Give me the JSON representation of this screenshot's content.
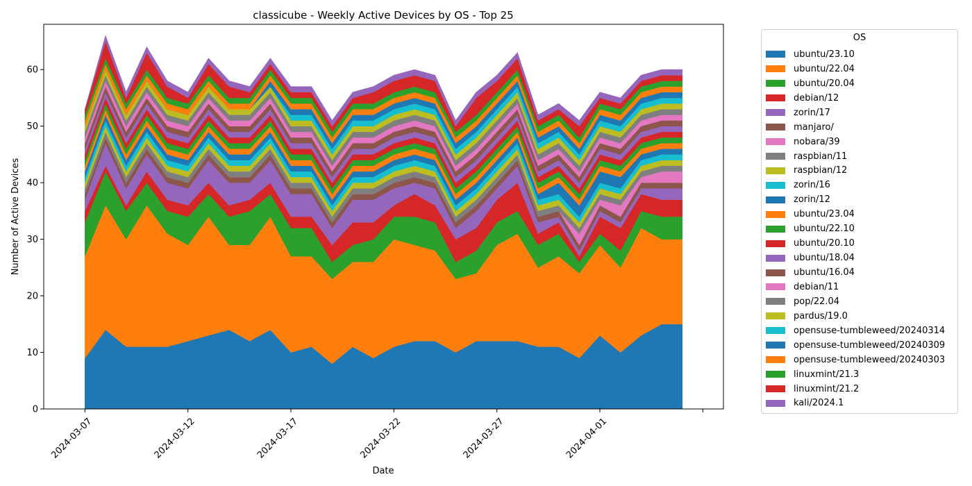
{
  "chart_data": {
    "type": "area",
    "stacked": true,
    "title": "classicube - Weekly Active Devices by OS - Top 25",
    "xlabel": "Date",
    "ylabel": "Number of Active Devices",
    "ylim": [
      0,
      68
    ],
    "xlim": [
      "2024-03-05",
      "2024-04-07"
    ],
    "yticks": [
      0,
      10,
      20,
      30,
      40,
      50,
      60
    ],
    "xticks": [
      "2024-03-07",
      "2024-03-12",
      "2024-03-17",
      "2024-03-22",
      "2024-03-27",
      "2024-04-01"
    ],
    "legend_title": "OS",
    "legend_position": "outside-right",
    "grid": false,
    "x": [
      "2024-03-07",
      "2024-03-08",
      "2024-03-09",
      "2024-03-10",
      "2024-03-11",
      "2024-03-12",
      "2024-03-13",
      "2024-03-14",
      "2024-03-15",
      "2024-03-16",
      "2024-03-17",
      "2024-03-18",
      "2024-03-19",
      "2024-03-20",
      "2024-03-21",
      "2024-03-22",
      "2024-03-23",
      "2024-03-24",
      "2024-03-25",
      "2024-03-26",
      "2024-03-27",
      "2024-03-28",
      "2024-03-29",
      "2024-03-30",
      "2024-03-31",
      "2024-04-01",
      "2024-04-02",
      "2024-04-03",
      "2024-04-04",
      "2024-04-05"
    ],
    "series": [
      {
        "name": "ubuntu/23.10",
        "color": "#1f77b4",
        "values": [
          9,
          14,
          11,
          11,
          11,
          12,
          13,
          14,
          12,
          14,
          10,
          11,
          8,
          11,
          9,
          11,
          12,
          12,
          10,
          12,
          12,
          12,
          11,
          11,
          9,
          13,
          10,
          13,
          15,
          15
        ]
      },
      {
        "name": "ubuntu/22.04",
        "color": "#ff7f0e",
        "values": [
          18,
          22,
          19,
          25,
          20,
          17,
          21,
          15,
          17,
          20,
          17,
          16,
          15,
          15,
          17,
          19,
          17,
          16,
          13,
          12,
          17,
          19,
          14,
          16,
          15,
          16,
          15,
          19,
          15,
          15
        ]
      },
      {
        "name": "ubuntu/20.04",
        "color": "#2ca02c",
        "values": [
          6,
          6,
          5,
          4,
          4,
          5,
          4,
          5,
          6,
          4,
          5,
          5,
          3,
          3,
          4,
          4,
          5,
          5,
          3,
          4,
          4,
          4,
          4,
          4,
          2,
          2,
          3,
          3,
          4,
          4
        ]
      },
      {
        "name": "debian/12",
        "color": "#d62728",
        "values": [
          2,
          1,
          1,
          2,
          2,
          2,
          2,
          2,
          2,
          2,
          2,
          2,
          3,
          4,
          3,
          2,
          4,
          3,
          4,
          4,
          4,
          5,
          2,
          2,
          1,
          3,
          4,
          3,
          3,
          3
        ]
      },
      {
        "name": "zorin/17",
        "color": "#9467bd",
        "values": [
          2,
          4,
          3,
          3,
          3,
          3,
          4,
          4,
          3,
          4,
          4,
          4,
          3,
          4,
          4,
          3,
          2,
          3,
          2,
          3,
          2,
          3,
          2,
          1,
          1,
          1,
          1,
          1,
          2,
          2
        ]
      },
      {
        "name": "manjaro/",
        "color": "#8c564b",
        "values": [
          1,
          1,
          1,
          1,
          1,
          1,
          1,
          1,
          1,
          1,
          1,
          1,
          1,
          1,
          1,
          1,
          1,
          1,
          1,
          1,
          1,
          1,
          1,
          1,
          1,
          1,
          1,
          1,
          1,
          1
        ]
      },
      {
        "name": "nobara/39",
        "color": "#e377c2",
        "values": [
          0,
          0,
          0,
          0,
          0,
          0,
          0,
          0,
          0,
          0,
          0,
          0,
          0,
          0,
          0,
          0,
          0,
          0,
          0,
          0,
          0,
          0,
          0,
          0,
          2,
          1,
          2,
          1,
          2,
          2
        ]
      },
      {
        "name": "raspbian/11",
        "color": "#7f7f7f",
        "values": [
          1,
          1,
          1,
          1,
          1,
          1,
          1,
          1,
          1,
          1,
          1,
          1,
          1,
          1,
          1,
          1,
          1,
          1,
          1,
          1,
          1,
          1,
          1,
          1,
          1,
          1,
          1,
          1,
          1,
          1
        ]
      },
      {
        "name": "raspbian/12",
        "color": "#bcbd22",
        "values": [
          1,
          1,
          1,
          1,
          1,
          1,
          1,
          1,
          1,
          1,
          1,
          1,
          1,
          1,
          1,
          1,
          1,
          1,
          1,
          1,
          1,
          1,
          1,
          1,
          1,
          1,
          1,
          1,
          1,
          1
        ]
      },
      {
        "name": "zorin/16",
        "color": "#17becf",
        "values": [
          1,
          1,
          1,
          1,
          1,
          1,
          1,
          1,
          1,
          1,
          1,
          1,
          1,
          1,
          1,
          1,
          1,
          1,
          1,
          1,
          1,
          1,
          1,
          1,
          1,
          1,
          1,
          1,
          1,
          1
        ]
      },
      {
        "name": "zorin/12",
        "color": "#1f77b4",
        "values": [
          1,
          1,
          1,
          1,
          1,
          1,
          1,
          1,
          1,
          1,
          1,
          1,
          1,
          1,
          1,
          1,
          1,
          1,
          1,
          1,
          1,
          1,
          1,
          2,
          2,
          2,
          2,
          1,
          1,
          1
        ]
      },
      {
        "name": "ubuntu/23.04",
        "color": "#ff7f0e",
        "values": [
          1,
          1,
          1,
          1,
          1,
          1,
          1,
          1,
          1,
          1,
          1,
          1,
          1,
          1,
          1,
          1,
          1,
          1,
          1,
          1,
          1,
          1,
          1,
          1,
          1,
          1,
          1,
          1,
          1,
          1
        ]
      },
      {
        "name": "ubuntu/22.10",
        "color": "#2ca02c",
        "values": [
          1,
          1,
          1,
          1,
          1,
          1,
          1,
          1,
          1,
          1,
          1,
          1,
          1,
          1,
          1,
          1,
          1,
          1,
          1,
          1,
          1,
          1,
          1,
          1,
          1,
          1,
          1,
          1,
          1,
          1
        ]
      },
      {
        "name": "ubuntu/20.10",
        "color": "#d62728",
        "values": [
          1,
          1,
          1,
          1,
          1,
          1,
          1,
          1,
          1,
          1,
          1,
          1,
          1,
          1,
          1,
          1,
          1,
          1,
          1,
          1,
          1,
          1,
          1,
          1,
          1,
          1,
          1,
          1,
          1,
          1
        ]
      },
      {
        "name": "ubuntu/18.04",
        "color": "#9467bd",
        "values": [
          1,
          1,
          1,
          1,
          1,
          1,
          1,
          1,
          1,
          1,
          1,
          1,
          1,
          1,
          1,
          1,
          1,
          1,
          1,
          1,
          1,
          1,
          1,
          1,
          1,
          1,
          1,
          1,
          1,
          1
        ]
      },
      {
        "name": "ubuntu/16.04",
        "color": "#8c564b",
        "values": [
          1,
          1,
          1,
          1,
          1,
          1,
          1,
          1,
          1,
          1,
          1,
          1,
          1,
          1,
          1,
          1,
          1,
          1,
          1,
          1,
          1,
          1,
          1,
          1,
          1,
          1,
          1,
          1,
          1,
          1
        ]
      },
      {
        "name": "debian/11",
        "color": "#e377c2",
        "values": [
          1,
          1,
          1,
          1,
          1,
          1,
          1,
          1,
          1,
          1,
          1,
          1,
          1,
          1,
          1,
          1,
          1,
          1,
          1,
          1,
          1,
          1,
          1,
          1,
          1,
          1,
          1,
          1,
          1,
          1
        ]
      },
      {
        "name": "pop/22.04",
        "color": "#7f7f7f",
        "values": [
          1,
          1,
          1,
          1,
          1,
          1,
          1,
          1,
          1,
          1,
          1,
          1,
          1,
          1,
          1,
          1,
          1,
          1,
          1,
          1,
          1,
          1,
          1,
          1,
          1,
          1,
          1,
          1,
          1,
          1
        ]
      },
      {
        "name": "pardus/19.0",
        "color": "#bcbd22",
        "values": [
          1,
          1,
          1,
          1,
          1,
          1,
          1,
          1,
          1,
          1,
          1,
          1,
          1,
          1,
          1,
          1,
          1,
          1,
          1,
          1,
          1,
          1,
          1,
          1,
          1,
          1,
          1,
          1,
          1,
          1
        ]
      },
      {
        "name": "opensuse-tumbleweed/20240314",
        "color": "#17becf",
        "values": [
          0,
          0,
          0,
          0,
          0,
          0,
          0,
          0,
          0,
          0,
          1,
          1,
          1,
          1,
          1,
          1,
          1,
          1,
          1,
          1,
          1,
          1,
          1,
          1,
          1,
          1,
          1,
          1,
          1,
          1
        ]
      },
      {
        "name": "opensuse-tumbleweed/20240309",
        "color": "#1f77b4",
        "values": [
          0,
          0,
          0,
          0,
          0,
          0,
          0,
          0,
          0,
          1,
          1,
          1,
          1,
          1,
          1,
          1,
          1,
          1,
          1,
          1,
          1,
          1,
          1,
          1,
          1,
          1,
          1,
          1,
          1,
          1
        ]
      },
      {
        "name": "opensuse-tumbleweed/20240303",
        "color": "#ff7f0e",
        "values": [
          1,
          1,
          1,
          1,
          1,
          1,
          1,
          1,
          1,
          1,
          1,
          1,
          1,
          1,
          1,
          1,
          1,
          1,
          1,
          1,
          1,
          1,
          1,
          1,
          1,
          1,
          1,
          1,
          1,
          1
        ]
      },
      {
        "name": "linuxmint/21.3",
        "color": "#2ca02c",
        "values": [
          1,
          1,
          1,
          1,
          1,
          1,
          1,
          1,
          1,
          1,
          1,
          1,
          1,
          1,
          1,
          1,
          1,
          1,
          1,
          1,
          1,
          1,
          1,
          1,
          1,
          1,
          1,
          1,
          1,
          1
        ]
      },
      {
        "name": "linuxmint/21.2",
        "color": "#d62728",
        "values": [
          1,
          3,
          1,
          3,
          2,
          1,
          2,
          2,
          1,
          1,
          1,
          1,
          1,
          1,
          2,
          2,
          2,
          2,
          1,
          3,
          2,
          2,
          1,
          1,
          2,
          1,
          1,
          1,
          1,
          1
        ]
      },
      {
        "name": "kali/2024.1",
        "color": "#9467bd",
        "values": [
          0,
          1,
          1,
          1,
          1,
          1,
          1,
          1,
          1,
          1,
          1,
          1,
          1,
          1,
          1,
          1,
          1,
          1,
          1,
          1,
          1,
          1,
          1,
          1,
          1,
          1,
          1,
          1,
          1,
          1
        ]
      }
    ]
  }
}
